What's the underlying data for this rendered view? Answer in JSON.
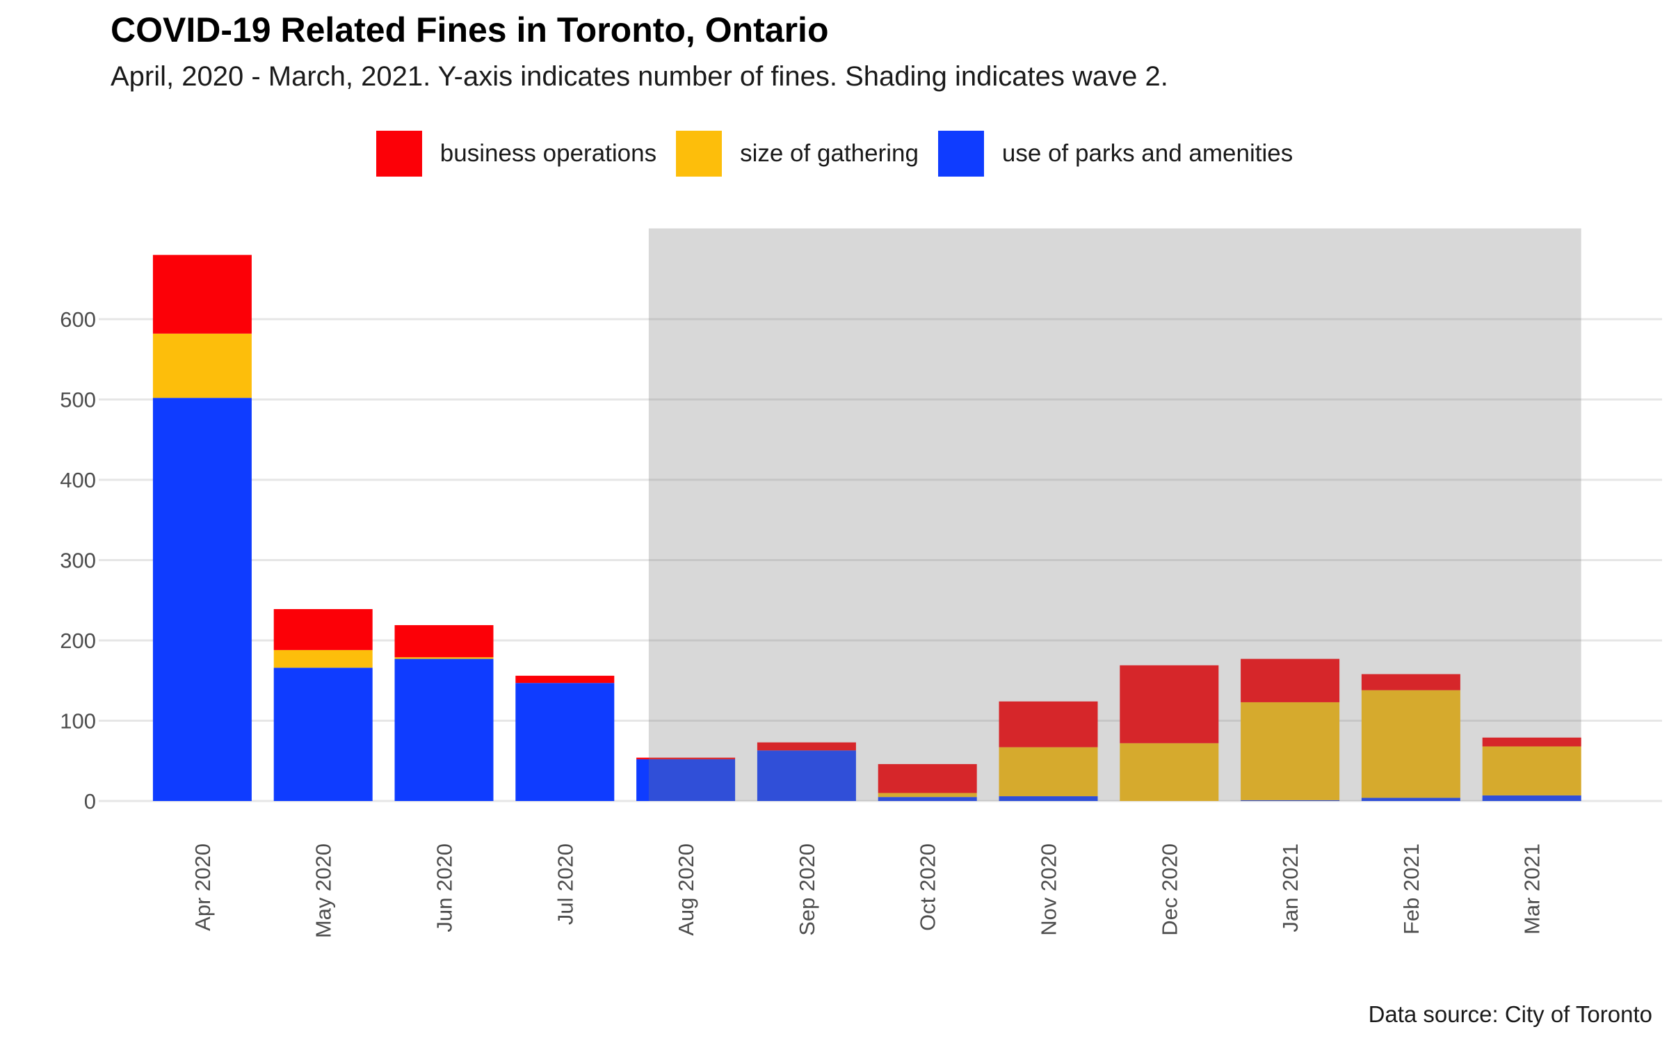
{
  "chart_data": {
    "type": "bar",
    "stacked": true,
    "title": "COVID-19 Related Fines in Toronto, Ontario",
    "subtitle": "April, 2020 - March, 2021. Y-axis indicates number of fines. Shading indicates wave 2.",
    "caption": "Data source: City of Toronto",
    "xlabel": "",
    "ylabel": "",
    "ylim": [
      0,
      700
    ],
    "yticks": [
      0,
      100,
      200,
      300,
      400,
      500,
      600
    ],
    "grid": true,
    "legend_position": "top",
    "categories": [
      "Apr 2020",
      "May 2020",
      "Jun 2020",
      "Jul 2020",
      "Aug 2020",
      "Sep 2020",
      "Oct 2020",
      "Nov 2020",
      "Dec 2020",
      "Jan 2021",
      "Feb 2021",
      "Mar 2021"
    ],
    "series": [
      {
        "name": "use of parks and amenities",
        "color": "#0f3cff",
        "values": [
          502,
          166,
          177,
          147,
          52,
          63,
          5,
          6,
          0,
          1,
          4,
          7
        ]
      },
      {
        "name": "size of gathering",
        "color": "#fdbe0b",
        "values": [
          80,
          22,
          2,
          0,
          0,
          0,
          5,
          61,
          72,
          122,
          134,
          61
        ]
      },
      {
        "name": "business operations",
        "color": "#fc0007",
        "values": [
          98,
          51,
          40,
          9,
          2,
          10,
          36,
          57,
          97,
          54,
          20,
          11
        ]
      }
    ],
    "legend_order": [
      "business operations",
      "size of gathering",
      "use of parks and amenities"
    ],
    "shaded_region": {
      "label": "wave 2",
      "from": "Sep 2020",
      "to": "Mar 2021",
      "ymax": 713,
      "color": "#d9d9d9"
    }
  }
}
